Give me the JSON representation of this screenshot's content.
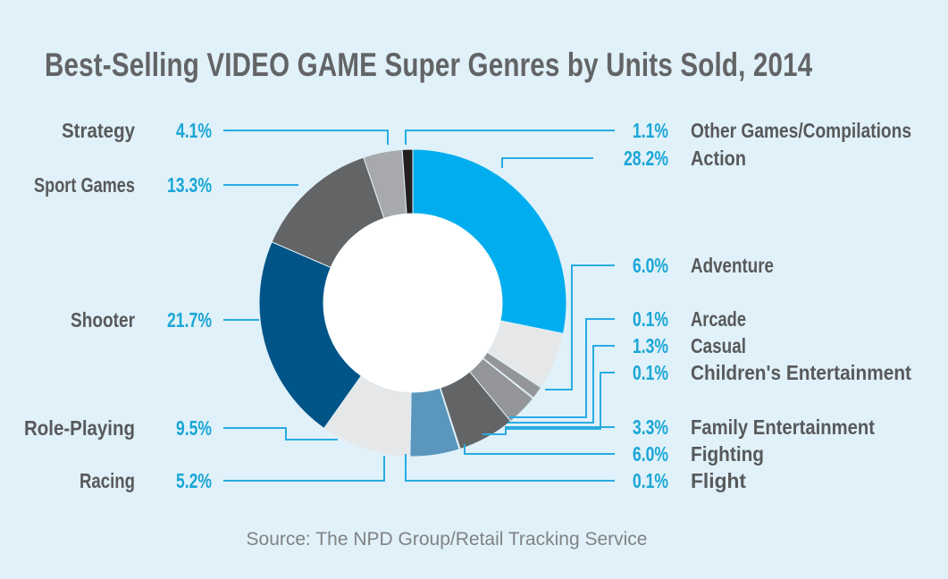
{
  "title": "Best-Selling VIDEO GAME Super Genres by Units Sold, 2014",
  "source": "Source: The NPD Group/Retail Tracking Service",
  "chart_data": {
    "type": "pie",
    "donut": true,
    "legend_placement": "labels-left-and-right",
    "slices": [
      {
        "label": "Action",
        "value": 28.2,
        "value_label": "28.2%",
        "color": "#00aeef"
      },
      {
        "label": "Adventure",
        "value": 6.0,
        "value_label": "6.0%",
        "color": "#e6e7e8"
      },
      {
        "label": "Arcade",
        "value": 0.1,
        "value_label": "0.1%",
        "color": "#231f20"
      },
      {
        "label": "Casual",
        "value": 1.3,
        "value_label": "1.3%",
        "color": "#939598"
      },
      {
        "label": "Children's Entertainment",
        "value": 0.1,
        "value_label": "0.1%",
        "color": "#231f20"
      },
      {
        "label": "Family Entertainment",
        "value": 3.3,
        "value_label": "3.3%",
        "color": "#939598"
      },
      {
        "label": "Fighting",
        "value": 6.0,
        "value_label": "6.0%",
        "color": "#c9e9f7"
      },
      {
        "label": "Flight",
        "value": 0.1,
        "value_label": "0.1%",
        "color": "#231f20"
      },
      {
        "label": "Racing",
        "value": 5.2,
        "value_label": "5.2%",
        "color": "#636466"
      },
      {
        "label": "Role-Playing",
        "value": 9.5,
        "value_label": "9.5%",
        "color": "#5b97bd"
      },
      {
        "label": "Shooter",
        "value": 21.7,
        "value_label": "21.7%",
        "color": "#e6e7e8"
      },
      {
        "label": "Sport Games",
        "value": 13.3,
        "value_label": "13.3%",
        "color": "#005487"
      },
      {
        "label": "Strategy",
        "value": 4.1,
        "value_label": "4.1%",
        "color": "#636466"
      },
      {
        "label": "Other Games/Compilations",
        "value": 1.1,
        "value_label": "1.1%",
        "color": "#a7a9ac"
      }
    ]
  }
}
